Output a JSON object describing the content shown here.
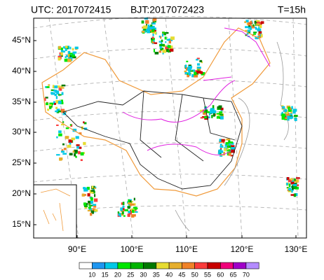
{
  "header": {
    "utc": "UTC: 2017072415",
    "bjt": "BJT:2017072423",
    "forecast": "T=15h"
  },
  "lat_labels": [
    "45°N",
    "40°N",
    "35°N",
    "30°N",
    "25°N",
    "20°N",
    "15°N"
  ],
  "lon_labels": [
    "90°E",
    "100°E",
    "110°E",
    "120°E",
    "130°E"
  ],
  "colorbar": {
    "labels": [
      "10",
      "15",
      "20",
      "25",
      "30",
      "35",
      "40",
      "45",
      "50",
      "55",
      "60",
      "65",
      "70"
    ],
    "colors": [
      "#ffffff",
      "#1e96f0",
      "#00c8e6",
      "#00e600",
      "#00b400",
      "#007800",
      "#e6dc32",
      "#e6af2d",
      "#f08228",
      "#fa3c3c",
      "#c80000",
      "#f0007a",
      "#a000c8",
      "#b48cff"
    ]
  }
}
